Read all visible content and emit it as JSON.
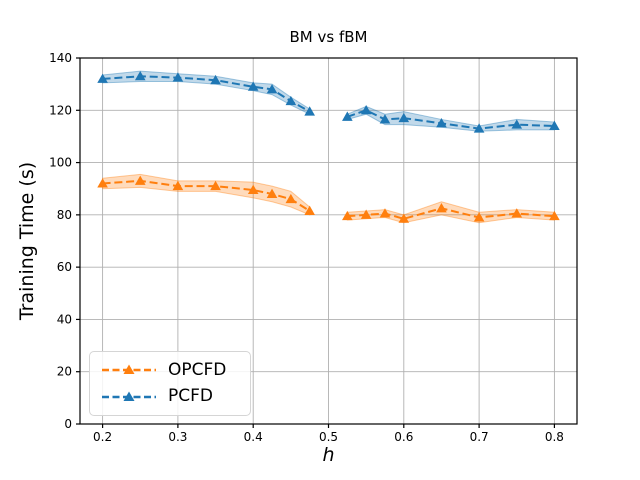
{
  "chart_data": {
    "type": "line",
    "title": "BM vs fBM",
    "xlabel": "h",
    "ylabel": "Training Time (s)",
    "xlim": [
      0.17,
      0.83
    ],
    "ylim": [
      0,
      140
    ],
    "xticks": [
      0.2,
      0.3,
      0.4,
      0.5,
      0.6,
      0.7,
      0.8
    ],
    "xtick_labels": [
      "0.2",
      "0.3",
      "0.4",
      "0.5",
      "0.6",
      "0.7",
      "0.8"
    ],
    "yticks": [
      0,
      20,
      40,
      60,
      80,
      100,
      120,
      140
    ],
    "ytick_labels": [
      "0",
      "20",
      "40",
      "60",
      "80",
      "100",
      "120",
      "140"
    ],
    "grid": true,
    "grid_color": "#b0b0b0",
    "line_style": "dashed",
    "marker": "triangle-up",
    "legend_position": "lower-left",
    "series": [
      {
        "name": "OPCFD",
        "color": "#ff7f0e",
        "segments": [
          {
            "x": [
              0.2,
              0.25,
              0.3,
              0.35,
              0.4,
              0.425,
              0.45,
              0.475
            ],
            "y": [
              92,
              93,
              91,
              91,
              89.5,
              88,
              86,
              81.5
            ],
            "band": [
              2,
              2.5,
              2,
              2,
              3,
              3,
              3,
              1.5
            ]
          },
          {
            "x": [
              0.525,
              0.55,
              0.575,
              0.6,
              0.65,
              0.7,
              0.75,
              0.8
            ],
            "y": [
              79.5,
              80,
              80.5,
              78.5,
              82.5,
              79,
              80.5,
              79.5
            ],
            "band": [
              1.5,
              1.5,
              1.5,
              1.5,
              2.5,
              2,
              1.5,
              1.5
            ]
          }
        ]
      },
      {
        "name": "PCFD",
        "color": "#1f77b4",
        "segments": [
          {
            "x": [
              0.2,
              0.25,
              0.3,
              0.35,
              0.4,
              0.425,
              0.45,
              0.475
            ],
            "y": [
              132,
              133,
              132.5,
              131.5,
              129,
              128,
              123.5,
              119.5
            ],
            "band": [
              1.5,
              2,
              1.5,
              1.5,
              1.5,
              2,
              1.5,
              1
            ]
          },
          {
            "x": [
              0.525,
              0.55,
              0.575,
              0.6,
              0.65,
              0.7,
              0.75,
              0.8
            ],
            "y": [
              117.5,
              120,
              116.5,
              117,
              115,
              113,
              114.5,
              114
            ],
            "band": [
              1,
              1.5,
              2,
              2.5,
              1.5,
              1,
              2,
              1.5
            ]
          }
        ]
      }
    ]
  }
}
